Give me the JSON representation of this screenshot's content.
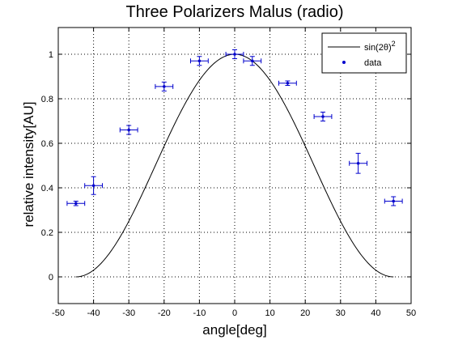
{
  "chart_data": {
    "type": "scatter",
    "title": "Three Polarizers Malus (radio)",
    "xlabel": "angle[deg]",
    "ylabel": "relative intensity[AU]",
    "xlim": [
      -50,
      50
    ],
    "ylim": [
      -0.12,
      1.12
    ],
    "x_ticks": [
      -50,
      -40,
      -30,
      -20,
      -10,
      0,
      10,
      20,
      30,
      40,
      50
    ],
    "y_ticks": [
      0,
      0.2,
      0.4,
      0.6,
      0.8,
      1
    ],
    "x_tick_labels": [
      "-50",
      "-40",
      "-30",
      "-20",
      "-10",
      "0",
      "10",
      "20",
      "30",
      "40",
      "50"
    ],
    "y_tick_labels": [
      "0",
      "0.2",
      "0.4",
      "0.6",
      "0.8",
      "1"
    ],
    "grid": true,
    "legend_position": "top-right",
    "series": [
      {
        "name": "sin(2θ)²",
        "type": "line",
        "color": "#000000",
        "x_range": [
          -45,
          45
        ]
      },
      {
        "name": "data",
        "type": "scatter",
        "color": "#0000cc",
        "points": [
          {
            "x": -45,
            "y": 0.33,
            "xerr": 2.5,
            "yerr": 0.01
          },
          {
            "x": -40,
            "y": 0.41,
            "xerr": 2.5,
            "yerr": 0.04
          },
          {
            "x": -30,
            "y": 0.66,
            "xerr": 2.5,
            "yerr": 0.02
          },
          {
            "x": -20,
            "y": 0.855,
            "xerr": 2.5,
            "yerr": 0.02
          },
          {
            "x": -10,
            "y": 0.97,
            "xerr": 2.5,
            "yerr": 0.02
          },
          {
            "x": 0,
            "y": 1.0,
            "xerr": 2.5,
            "yerr": 0.02
          },
          {
            "x": 5,
            "y": 0.97,
            "xerr": 2.5,
            "yerr": 0.02
          },
          {
            "x": 15,
            "y": 0.87,
            "xerr": 2.5,
            "yerr": 0.01
          },
          {
            "x": 25,
            "y": 0.72,
            "xerr": 2.5,
            "yerr": 0.02
          },
          {
            "x": 35,
            "y": 0.51,
            "xerr": 2.5,
            "yerr": 0.045
          },
          {
            "x": 45,
            "y": 0.34,
            "xerr": 2.5,
            "yerr": 0.02
          }
        ]
      }
    ],
    "legend": {
      "entries": [
        {
          "label_main": "sin(2θ)",
          "label_sup": "2"
        },
        {
          "label_main": "data",
          "label_sup": ""
        }
      ]
    }
  }
}
